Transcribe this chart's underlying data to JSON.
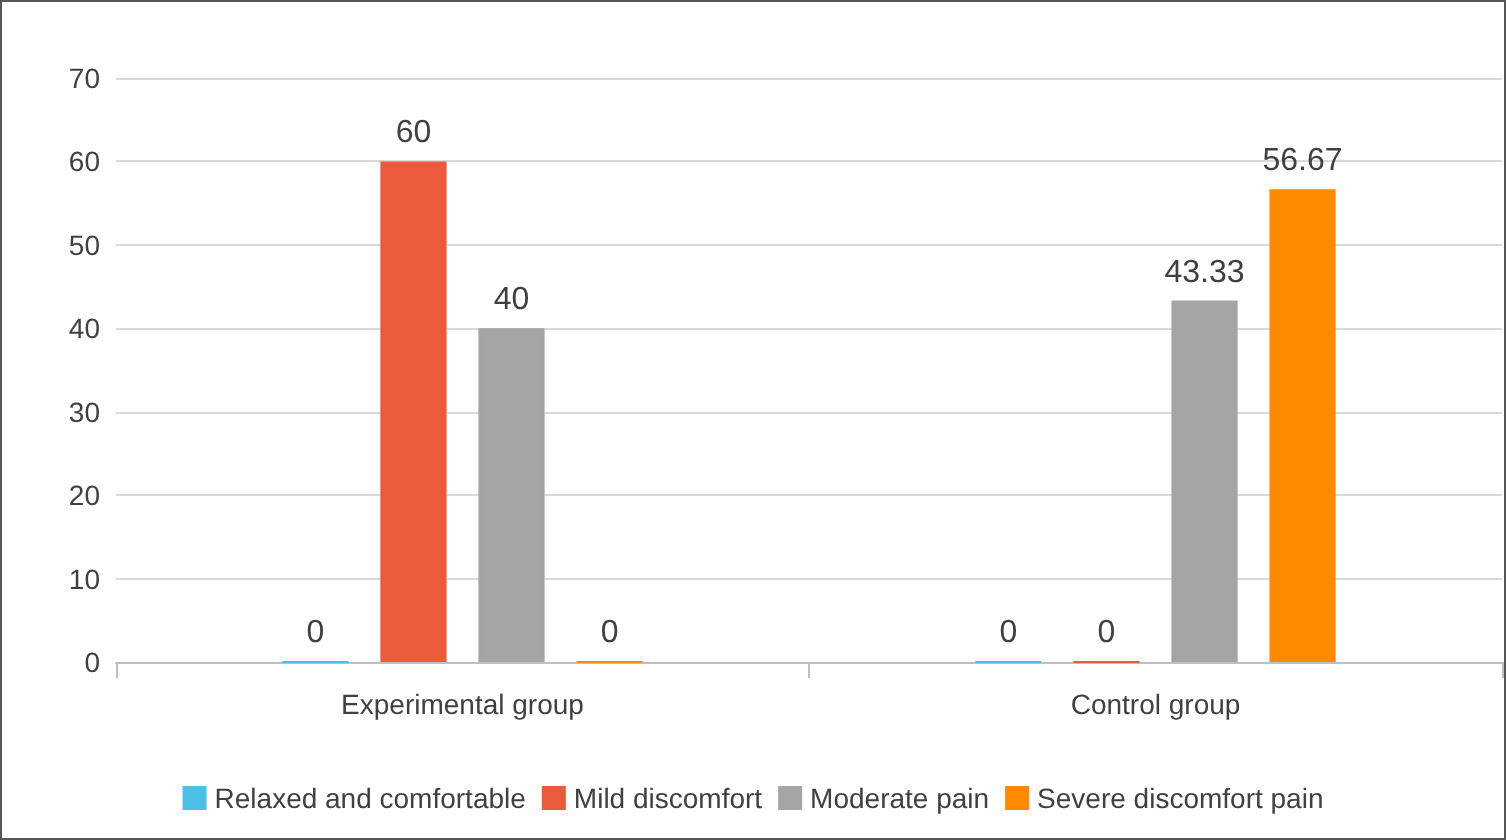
{
  "chart_data": {
    "type": "bar",
    "categories": [
      "Experimental group",
      "Control group"
    ],
    "series": [
      {
        "name": "Relaxed and comfortable",
        "color": "#4bc0e6",
        "values": [
          0,
          0
        ]
      },
      {
        "name": "Mild discomfort",
        "color": "#eb5a3a",
        "values": [
          60,
          0
        ]
      },
      {
        "name": "Moderate pain",
        "color": "#a5a5a5",
        "values": [
          40,
          43.33
        ]
      },
      {
        "name": "Severe discomfort pain",
        "color": "#ff8a00",
        "values": [
          0,
          56.67
        ]
      }
    ],
    "ylim": [
      0,
      70
    ],
    "yticks": [
      0,
      10,
      20,
      30,
      40,
      50,
      60,
      70
    ],
    "grid": "y",
    "legend": "bottom",
    "data_labels": true
  }
}
